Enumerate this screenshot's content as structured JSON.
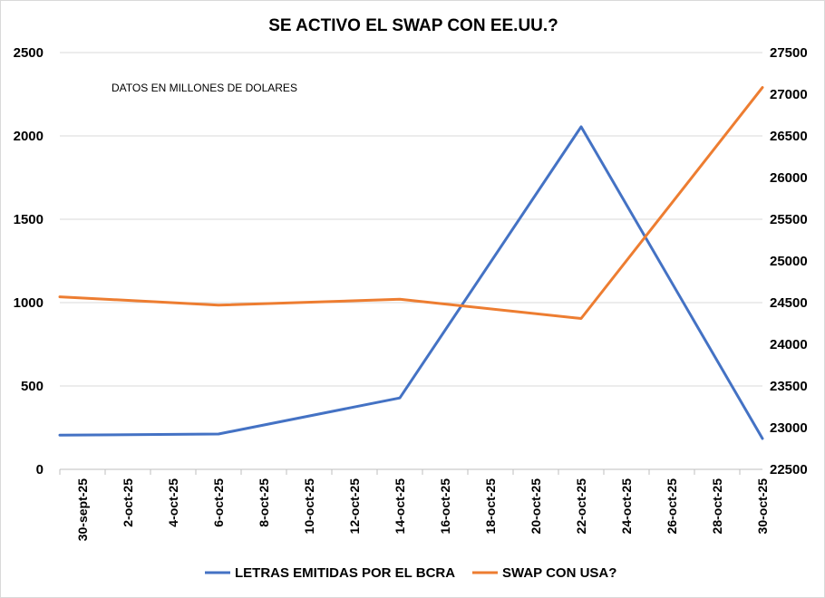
{
  "chart_data": {
    "type": "line",
    "title": "SE ACTIVO EL SWAP  CON EE.UU.?",
    "annotation": "DATOS EN MILLONES DE DOLARES",
    "x_ticks": [
      "30-sept-25",
      "2-oct-25",
      "4-oct-25",
      "6-oct-25",
      "8-oct-25",
      "10-oct-25",
      "12-oct-25",
      "14-oct-25",
      "16-oct-25",
      "18-oct-25",
      "20-oct-25",
      "22-oct-25",
      "24-oct-25",
      "26-oct-25",
      "28-oct-25",
      "30-oct-25"
    ],
    "x_range": [
      "2025-09-30",
      "2025-10-31"
    ],
    "y_left": {
      "min": 0,
      "max": 2500,
      "step": 500,
      "ticks": [
        "0",
        "500",
        "1000",
        "1500",
        "2000",
        "2500"
      ]
    },
    "y_right": {
      "min": 22500,
      "max": 27500,
      "step": 500,
      "ticks": [
        "22500",
        "23000",
        "23500",
        "24000",
        "24500",
        "25000",
        "25500",
        "26000",
        "26500",
        "27000",
        "27500"
      ]
    },
    "grid": "horizontal",
    "legend_position": "bottom",
    "series": [
      {
        "name": "LETRAS EMITIDAS POR EL BCRA",
        "axis": "left",
        "color": "#4472C4",
        "points": [
          {
            "x": "2025-09-30",
            "y": 205
          },
          {
            "x": "2025-10-07",
            "y": 212
          },
          {
            "x": "2025-10-15",
            "y": 428
          },
          {
            "x": "2025-10-23",
            "y": 2055
          },
          {
            "x": "2025-10-31",
            "y": 185
          }
        ]
      },
      {
        "name": "SWAP CON USA?",
        "axis": "right",
        "color": "#ED7D31",
        "points": [
          {
            "x": "2025-09-30",
            "y": 24570
          },
          {
            "x": "2025-10-07",
            "y": 24470
          },
          {
            "x": "2025-10-15",
            "y": 24540
          },
          {
            "x": "2025-10-23",
            "y": 24310
          },
          {
            "x": "2025-10-31",
            "y": 27080
          }
        ]
      }
    ]
  }
}
